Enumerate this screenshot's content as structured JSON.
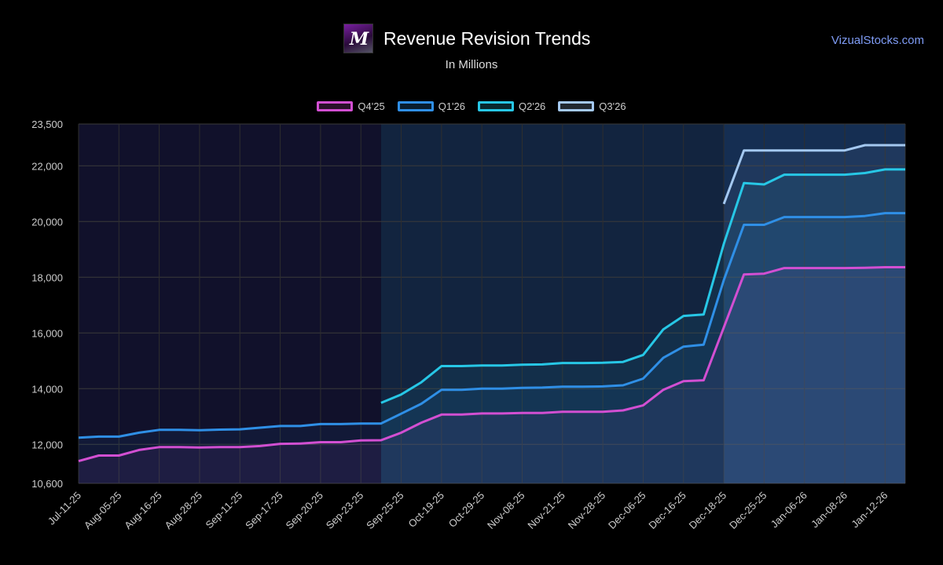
{
  "header": {
    "logo_text": "M",
    "title": "Revenue Revision Trends",
    "subtitle": "In Millions",
    "brand": "VizualStocks.com"
  },
  "chart_data": {
    "type": "line",
    "y_ticks": [
      10600,
      12000,
      14000,
      16000,
      18000,
      20000,
      22000,
      23500
    ],
    "ylim": [
      10600,
      23500
    ],
    "x_count": 42,
    "x_tick_labels": [
      {
        "i": 0,
        "label": "Jul-11-25"
      },
      {
        "i": 2,
        "label": "Aug-05-25"
      },
      {
        "i": 4,
        "label": "Aug-16-25"
      },
      {
        "i": 6,
        "label": "Aug-28-25"
      },
      {
        "i": 8,
        "label": "Sep-11-25"
      },
      {
        "i": 10,
        "label": "Sep-17-25"
      },
      {
        "i": 12,
        "label": "Sep-20-25"
      },
      {
        "i": 14,
        "label": "Sep-23-25"
      },
      {
        "i": 16,
        "label": "Sep-25-25"
      },
      {
        "i": 18,
        "label": "Oct-19-25"
      },
      {
        "i": 20,
        "label": "Oct-29-25"
      },
      {
        "i": 22,
        "label": "Nov-08-25"
      },
      {
        "i": 24,
        "label": "Nov-21-25"
      },
      {
        "i": 26,
        "label": "Nov-28-25"
      },
      {
        "i": 28,
        "label": "Dec-06-25"
      },
      {
        "i": 30,
        "label": "Dec-16-25"
      },
      {
        "i": 32,
        "label": "Dec-18-25"
      },
      {
        "i": 34,
        "label": "Dec-25-25"
      },
      {
        "i": 36,
        "label": "Jan-06-26"
      },
      {
        "i": 38,
        "label": "Jan-08-26"
      },
      {
        "i": 40,
        "label": "Jan-12-26"
      }
    ],
    "shading": [
      {
        "from": 0,
        "to": 15,
        "color": "#141432"
      },
      {
        "from": 15,
        "to": 32,
        "color": "#152a4a"
      },
      {
        "from": 32,
        "to": 41,
        "color": "#193660"
      }
    ],
    "series": [
      {
        "name": "Q4'25",
        "color": "#d24fd2",
        "start": 0,
        "values": [
          11400,
          11600,
          11600,
          11800,
          11900,
          11900,
          11890,
          11900,
          11900,
          11940,
          12020,
          12030,
          12080,
          12080,
          12140,
          12150,
          12420,
          12780,
          13070,
          13070,
          13110,
          13110,
          13130,
          13130,
          13170,
          13170,
          13170,
          13220,
          13400,
          13960,
          14270,
          14300,
          16200,
          18100,
          18130,
          18330,
          18330,
          18330,
          18330,
          18340,
          18360,
          18360
        ]
      },
      {
        "name": "Q1'26",
        "color": "#2f8fe6",
        "start": 0,
        "values": [
          12240,
          12280,
          12280,
          12420,
          12520,
          12520,
          12510,
          12530,
          12540,
          12600,
          12660,
          12660,
          12730,
          12730,
          12750,
          12750,
          13100,
          13460,
          13960,
          13960,
          14000,
          14000,
          14030,
          14040,
          14070,
          14070,
          14080,
          14120,
          14360,
          15110,
          15510,
          15580,
          17900,
          19880,
          19880,
          20160,
          20160,
          20160,
          20160,
          20200,
          20300,
          20300
        ]
      },
      {
        "name": "Q2'26",
        "color": "#27c7e6",
        "start": 15,
        "values": [
          13490,
          13790,
          14230,
          14810,
          14810,
          14830,
          14830,
          14860,
          14870,
          14920,
          14920,
          14930,
          14960,
          15210,
          16130,
          16610,
          16660,
          19200,
          21380,
          21330,
          21680,
          21680,
          21680,
          21680,
          21740,
          21870,
          21870
        ]
      },
      {
        "name": "Q3'26",
        "color": "#a4c8f0",
        "start": 32,
        "values": [
          20630,
          22550,
          22550,
          22550,
          22550,
          22550,
          22550,
          22740,
          22740,
          22740
        ]
      }
    ]
  }
}
